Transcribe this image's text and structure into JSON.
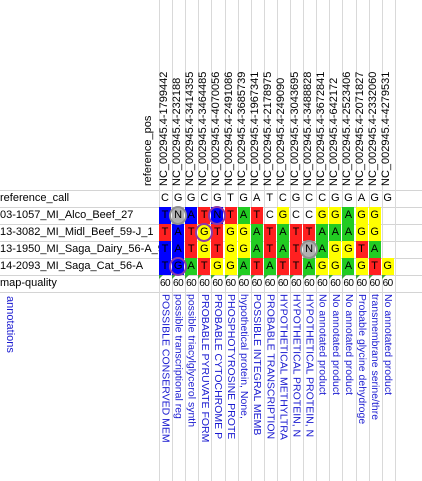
{
  "header": {
    "reference_pos_label": "reference_pos",
    "positions": [
      "NC_002945.4-1799442",
      "NC_002945.4-232188",
      "NC_002945.4-3414355",
      "NC_002945.4-3464485",
      "NC_002945.4-4070056",
      "NC_002945.4-2491086",
      "NC_002945.4-3685739",
      "NC_002945.4-1967341",
      "NC_002945.4-2178975",
      "NC_002945.4-249090",
      "NC_002945.4-3043695",
      "NC_002945.4-3488828",
      "NC_002945.4-3672841",
      "NC_002945.4-642172",
      "NC_002945.4-2523406",
      "NC_002945.4-2071827",
      "NC_002945.4-2332060",
      "NC_002945.4-4279531"
    ]
  },
  "rows": {
    "reference_label": "reference_call",
    "reference": [
      "C",
      "G",
      "G",
      "C",
      "G",
      "T",
      "G",
      "A",
      "T",
      "C",
      "G",
      "C",
      "C",
      "G",
      "G",
      "A",
      "G",
      "G"
    ],
    "samples": [
      {
        "label": "03-1057_MI_Alco_Beef_27",
        "calls": [
          "T",
          "N",
          "A",
          "T",
          "N",
          "T",
          "A",
          "T",
          "C",
          "G",
          "C",
          "C",
          "G",
          "G",
          "A",
          "G",
          "G",
          ""
        ]
      },
      {
        "label": "13-3082_MI_Midl_Beef_59-J_1",
        "calls": [
          "T",
          "A",
          "T",
          "G",
          "T",
          "G",
          "G",
          "A",
          "T",
          "A",
          "T",
          "T",
          "A",
          "A",
          "A",
          "G",
          "G",
          ""
        ]
      },
      {
        "label": "13-1950_MI_Saga_Dairy_56-A_9",
        "calls": [
          "T",
          "A",
          "T",
          "G",
          "T",
          "G",
          "G",
          "A",
          "T",
          "A",
          "T",
          "N",
          "A",
          "G",
          "G",
          "T",
          "A",
          ""
        ]
      },
      {
        "label": "14-2093_MI_Saga_Cat_56-A",
        "calls": [
          "T",
          "G",
          "A",
          "T",
          "G",
          "G",
          "A",
          "T",
          "A",
          "T",
          "T",
          "A",
          "G",
          "G",
          "A",
          "G",
          "T",
          "G"
        ]
      }
    ],
    "quality_label": "map-quality",
    "quality": [
      "60",
      "60",
      "60",
      "60",
      "60",
      "60",
      "60",
      "60",
      "60",
      "60",
      "60",
      "60",
      "60",
      "60",
      "60",
      "60",
      "60",
      "60"
    ],
    "annotations_label": "annotations",
    "annotations": [
      "POSSIBLE CONSERVED MEM",
      "possible transcriptional reg",
      "possible triacylglycerol synth",
      "PROBABLE PYRUVATE FORM",
      "PROBABLE CYTOCHROME P",
      "PHOSPHOTYROSINE PROTE",
      "hypothetical protein, None,",
      "POSSIBLE INTEGRAL MEMB",
      "PROBABLE TRANSCRIPTION",
      "HYPOTHETICAL METHYLTRA",
      "HYPOTHETICAL PROTEIN, N",
      "HYPOTHETICAL PROTEIN, N",
      "No annotated product",
      "No annotated product",
      "No annotated product",
      "Probable glycine dehydroge",
      "transmembrane serine/thre",
      "No annotated product"
    ]
  },
  "colors": {
    "T": "#ff2020",
    "A": "#22cc22",
    "G": "#ffff00",
    "C": "#ffffff",
    "N": "#b0b0b0",
    "blue": "#0000ff",
    "ring": "#8a3aa8",
    "annotation_text": "#1a1ad0"
  }
}
